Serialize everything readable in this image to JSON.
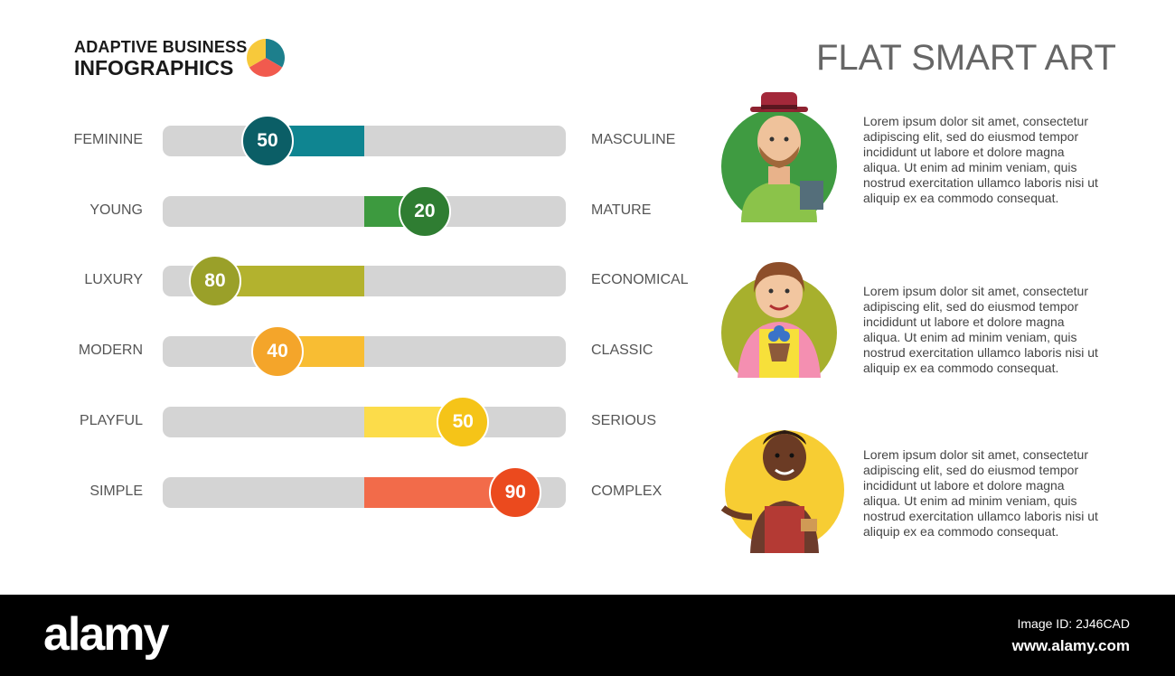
{
  "brand": {
    "line1": "ADAPTIVE BUSINESS",
    "line2": "INFOGRAPHICS",
    "pie_colors": [
      "#1d7f8c",
      "#f15a4e",
      "#f7c93b"
    ]
  },
  "title": "FLAT SMART ART",
  "scales": [
    {
      "left": "FEMININE",
      "right": "MASCULINE",
      "value": 50,
      "position": 0.26,
      "color": "#0b5e66",
      "fill_color": "#0f8591"
    },
    {
      "left": "YOUNG",
      "right": "MATURE",
      "value": 20,
      "position": 0.65,
      "color": "#2f7d32",
      "fill_color": "#3d9a3f"
    },
    {
      "left": "LUXURY",
      "right": "ECONOMICAL",
      "value": 80,
      "position": 0.13,
      "color": "#9aa029",
      "fill_color": "#b3b22e"
    },
    {
      "left": "MODERN",
      "right": "CLASSIC",
      "value": 40,
      "position": 0.285,
      "color": "#f4a52a",
      "fill_color": "#f8bd33"
    },
    {
      "left": "PLAYFUL",
      "right": "SERIOUS",
      "value": 50,
      "position": 0.745,
      "color": "#f5c418",
      "fill_color": "#fcdc4a"
    },
    {
      "left": "SIMPLE",
      "right": "COMPLEX",
      "value": 90,
      "position": 0.875,
      "color": "#eb4a1e",
      "fill_color": "#f26b4a"
    }
  ],
  "personas": [
    {
      "avatar": "man-hat-book-icon",
      "bg_color": "#3f9b41",
      "text": "Lorem ipsum dolor sit amet, consectetur adipiscing elit, sed do eiusmod tempor incididunt ut labore et dolore magna aliqua. Ut enim ad minim veniam, quis nostrud exercitation ullamco laboris nisi ut aliquip ex ea commodo consequat."
    },
    {
      "avatar": "woman-flower-pot-icon",
      "bg_color": "#a7b02d",
      "text": "Lorem ipsum dolor sit amet, consectetur adipiscing elit, sed do eiusmod tempor incididunt ut labore et dolore magna aliqua. Ut enim ad minim veniam, quis nostrud exercitation ullamco laboris nisi ut aliquip ex ea commodo consequat."
    },
    {
      "avatar": "woman-apron-keys-icon",
      "bg_color": "#f7cd33",
      "text": "Lorem ipsum dolor sit amet, consectetur adipiscing elit, sed do eiusmod tempor incididunt ut labore et dolore magna aliqua. Ut enim ad minim veniam, quis nostrud exercitation ullamco laboris nisi ut aliquip ex ea commodo consequat."
    }
  ],
  "footer": {
    "logo": "alamy",
    "image_id": "Image ID: 2J46CAD",
    "url": "www.alamy.com"
  }
}
